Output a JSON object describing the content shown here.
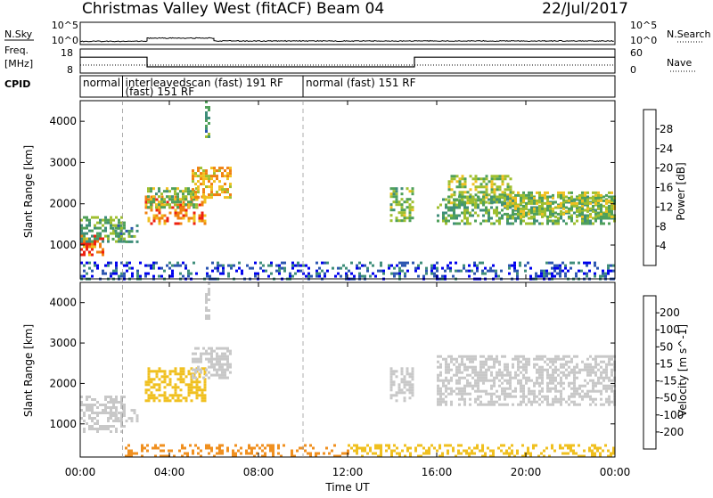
{
  "header": {
    "title": "Christmas Valley West (fitACF)",
    "beam": "Beam 04",
    "date": "22/Jul/2017"
  },
  "noise_panel": {
    "left_label": "N.Sky",
    "left_ticks": [
      "10^5",
      "10^0"
    ],
    "right_label": "N.Search",
    "right_ticks": [
      "10^5",
      "10^0"
    ]
  },
  "freq_panel": {
    "left_label_1": "Freq.",
    "left_label_2": "[MHz]",
    "left_ticks": [
      "18",
      "8"
    ],
    "right_label": "Nave",
    "right_ticks": [
      "60",
      "0"
    ]
  },
  "cpid_panel": {
    "label": "CPID",
    "segments": [
      {
        "start_hour": 0.0,
        "end_hour": 1.9,
        "line1": "normal",
        "line2": ""
      },
      {
        "start_hour": 1.9,
        "end_hour": 10.0,
        "line1": "interleavedscan (fast) 191 RF",
        "line2": "(fast) 151 RF"
      },
      {
        "start_hour": 10.0,
        "end_hour": 24.0,
        "line1": "normal (fast) 151 RF",
        "line2": ""
      }
    ]
  },
  "x_axis": {
    "label": "Time UT",
    "ticks": [
      "00:00",
      "04:00",
      "08:00",
      "12:00",
      "16:00",
      "20:00",
      "00:00"
    ],
    "tick_hours": [
      0,
      4,
      8,
      12,
      16,
      20,
      24
    ]
  },
  "power_panel": {
    "y_label": "Slant Range [km]",
    "y_ticks": [
      "1000",
      "2000",
      "3000",
      "4000"
    ],
    "colorbar_label": "Power [dB]",
    "colorbar_ticks": [
      "4",
      "8",
      "12",
      "16",
      "20",
      "24",
      "28"
    ],
    "colors": [
      "#0000ee",
      "#2b55b0",
      "#3f8e7a",
      "#4fa05a",
      "#9fbf2f",
      "#f0c020",
      "#f08010",
      "#ee2010"
    ]
  },
  "velocity_panel": {
    "y_label": "Slant Range [km]",
    "y_ticks": [
      "1000",
      "2000",
      "3000",
      "4000"
    ],
    "colorbar_label": "Velocity [m s^-1]",
    "colorbar_ticks": [
      "200",
      "100",
      "50",
      "15",
      "-15",
      "-50",
      "-100",
      "-200"
    ],
    "colors": [
      "#2040c0",
      "#3070a0",
      "#309050",
      "#70c040",
      "#c8c8c8",
      "#f0c020",
      "#f09020",
      "#f05010",
      "#e01010"
    ]
  },
  "chart_data": {
    "type": "heatmap",
    "x_unit": "hours UT",
    "xlim": [
      0,
      24
    ],
    "ylim": [
      180,
      4500
    ],
    "power_regions": [
      {
        "t0": 0.0,
        "t1": 1.0,
        "r0": 750,
        "r1": 1250,
        "level": 28
      },
      {
        "t0": 0.0,
        "t1": 2.0,
        "r0": 1100,
        "r1": 1700,
        "level": 14
      },
      {
        "t0": 1.3,
        "t1": 2.6,
        "r0": 1050,
        "r1": 1500,
        "level": 12
      },
      {
        "t0": 2.9,
        "t1": 5.6,
        "r0": 1550,
        "r1": 2200,
        "level": 26
      },
      {
        "t0": 3.0,
        "t1": 5.2,
        "r0": 1900,
        "r1": 2400,
        "level": 16
      },
      {
        "t0": 5.0,
        "t1": 6.8,
        "r0": 2150,
        "r1": 2900,
        "level": 22
      },
      {
        "t0": 5.6,
        "t1": 5.8,
        "r0": 3600,
        "r1": 4500,
        "level": 12
      },
      {
        "t0": 13.9,
        "t1": 14.9,
        "r0": 1600,
        "r1": 2400,
        "level": 16
      },
      {
        "t0": 16.5,
        "t1": 19.5,
        "r0": 2000,
        "r1": 2700,
        "level": 18
      },
      {
        "t0": 16.0,
        "t1": 24.0,
        "r0": 1500,
        "r1": 2200,
        "level": 14
      },
      {
        "t0": 19.0,
        "t1": 24.0,
        "r0": 1700,
        "r1": 2300,
        "level": 18
      },
      {
        "t0": 0.0,
        "t1": 24.0,
        "r0": 200,
        "r1": 600,
        "level": 6
      }
    ],
    "velocity_regions": [
      {
        "t0": 0.0,
        "t1": 2.0,
        "r0": 800,
        "r1": 1700,
        "level": 0
      },
      {
        "t0": 1.3,
        "t1": 2.6,
        "r0": 1050,
        "r1": 1500,
        "level": 0
      },
      {
        "t0": 2.9,
        "t1": 5.6,
        "r0": 1550,
        "r1": 2400,
        "level": -30
      },
      {
        "t0": 5.0,
        "t1": 6.8,
        "r0": 2150,
        "r1": 2900,
        "level": 0
      },
      {
        "t0": 5.6,
        "t1": 5.8,
        "r0": 3600,
        "r1": 4500,
        "level": 0
      },
      {
        "t0": 13.9,
        "t1": 14.9,
        "r0": 1600,
        "r1": 2400,
        "level": 0
      },
      {
        "t0": 16.0,
        "t1": 24.0,
        "r0": 1500,
        "r1": 2700,
        "level": 0
      },
      {
        "t0": 2.0,
        "t1": 12.0,
        "r0": 200,
        "r1": 500,
        "level": -60
      },
      {
        "t0": 12.0,
        "t1": 24.0,
        "r0": 200,
        "r1": 500,
        "level": -30
      }
    ],
    "freq_mhz": [
      {
        "t0": 0.0,
        "t1": 3.0,
        "value": 15
      },
      {
        "t0": 3.0,
        "t1": 15.0,
        "value": 10.5
      },
      {
        "t0": 15.0,
        "t1": 24.0,
        "value": 15
      }
    ],
    "nave": [
      {
        "t0": 0.0,
        "t1": 24.0,
        "value": 20
      }
    ],
    "noise_sky_log10": [
      {
        "t0": 0.0,
        "t1": 3.0,
        "value": 0.4
      },
      {
        "t0": 3.0,
        "t1": 6.0,
        "value": 1.3
      },
      {
        "t0": 6.0,
        "t1": 24.0,
        "value": 0.5
      }
    ]
  }
}
